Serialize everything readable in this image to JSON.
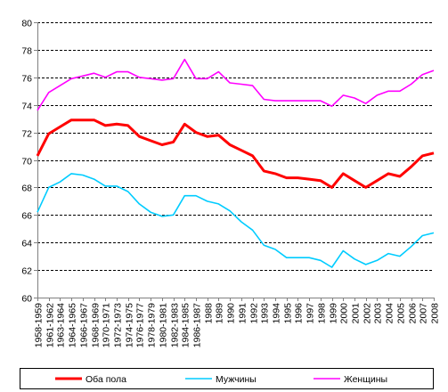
{
  "chart_data": {
    "type": "line",
    "categories": [
      "1958-1959",
      "1961-1962",
      "1963-1964",
      "1964-1965",
      "1966-1967",
      "1968-1969",
      "1970-1971",
      "1972-1973",
      "1974-1975",
      "1976-1977",
      "1978-1979",
      "1980-1981",
      "1982-1983",
      "1984-1985",
      "1986-1987",
      "1988",
      "1989",
      "1990",
      "1991",
      "1992",
      "1993",
      "1994",
      "1995",
      "1996",
      "1997",
      "1998",
      "1999",
      "2000",
      "2001",
      "2002",
      "2003",
      "2004",
      "2005",
      "2006",
      "2007",
      "2008"
    ],
    "series": [
      {
        "name": "Оба пола",
        "color": "#ff0000",
        "values": [
          70.3,
          71.9,
          72.4,
          72.9,
          72.9,
          72.9,
          72.5,
          72.6,
          72.5,
          71.7,
          71.4,
          71.1,
          71.3,
          72.6,
          72.0,
          71.7,
          71.8,
          71.1,
          70.7,
          70.3,
          69.2,
          69.0,
          68.7,
          68.7,
          68.6,
          68.5,
          68.0,
          69.0,
          68.5,
          68.0,
          68.5,
          69.0,
          68.8,
          69.5,
          70.3,
          70.5
        ]
      },
      {
        "name": "Мужчины",
        "color": "#00ccff",
        "values": [
          66.2,
          68.0,
          68.4,
          69.0,
          68.9,
          68.6,
          68.1,
          68.1,
          67.7,
          66.8,
          66.2,
          65.9,
          66.0,
          67.4,
          67.4,
          67.0,
          66.8,
          66.3,
          65.5,
          64.9,
          63.8,
          63.5,
          62.9,
          62.9,
          62.9,
          62.7,
          62.2,
          63.4,
          62.8,
          62.4,
          62.7,
          63.2,
          63.0,
          63.7,
          64.5,
          64.7
        ]
      },
      {
        "name": "Женщины",
        "color": "#ff00ff",
        "values": [
          73.6,
          74.9,
          75.4,
          75.9,
          76.1,
          76.3,
          76.0,
          76.4,
          76.4,
          76.0,
          75.9,
          75.8,
          75.9,
          77.3,
          75.9,
          75.9,
          76.4,
          75.6,
          75.5,
          75.4,
          74.4,
          74.3,
          74.3,
          74.3,
          74.3,
          74.3,
          73.9,
          74.7,
          74.5,
          74.1,
          74.7,
          75.0,
          75.0,
          75.5,
          76.2,
          76.5
        ]
      }
    ],
    "ylim": [
      60,
      80
    ],
    "yticks": [
      60,
      62,
      64,
      66,
      68,
      70,
      72,
      74,
      76,
      78,
      80
    ],
    "grid": true,
    "legend_position": "bottom"
  }
}
